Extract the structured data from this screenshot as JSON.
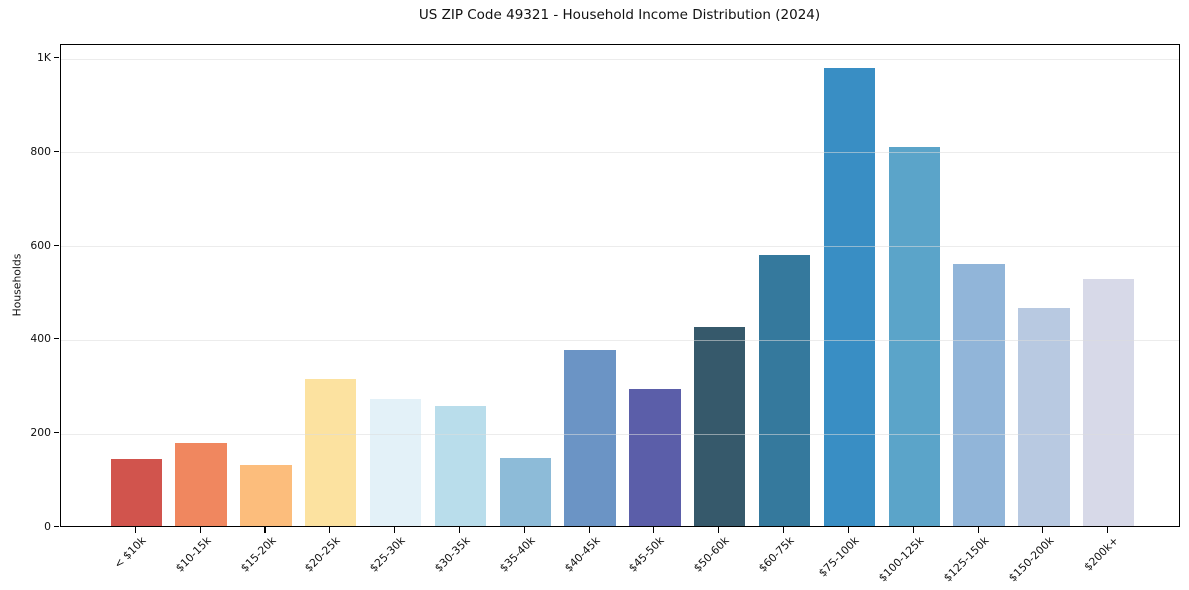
{
  "chart_data": {
    "type": "bar",
    "title": "US ZIP Code 49321 - Household Income Distribution (2024)",
    "xlabel": "",
    "ylabel": "Households",
    "categories": [
      "< $10k",
      "$10-15k",
      "$15-20k",
      "$20-25k",
      "$25-30k",
      "$30-35k",
      "$35-40k",
      "$40-45k",
      "$45-50k",
      "$50-60k",
      "$60-75k",
      "$75-100k",
      "$100-125k",
      "$125-150k",
      "$150-200k",
      "$200k+"
    ],
    "values": [
      142,
      177,
      129,
      312,
      270,
      255,
      144,
      374,
      291,
      423,
      577,
      976,
      808,
      558,
      464,
      526
    ],
    "bar_colors": [
      "#d1544d",
      "#f0875f",
      "#fcbd7c",
      "#fce2a0",
      "#e3f1f8",
      "#b9ddeb",
      "#8dbbd8",
      "#6b94c5",
      "#5b5ea9",
      "#36596b",
      "#35799d",
      "#398ec4",
      "#5ba4c9",
      "#91b5d9",
      "#b8c9e1",
      "#d7d9e8"
    ],
    "yticks": [
      {
        "value": 0,
        "label": "0"
      },
      {
        "value": 200,
        "label": "200"
      },
      {
        "value": 400,
        "label": "400"
      },
      {
        "value": 600,
        "label": "600"
      },
      {
        "value": 800,
        "label": "800"
      },
      {
        "value": 1000,
        "label": "1K"
      }
    ],
    "ylim": [
      0,
      1030
    ],
    "grid": "horizontal",
    "grid_on_top_of_bars": true,
    "legend": "none",
    "colors": {
      "frame": "#000000",
      "grid": "#dddddd",
      "text": "#1a1a1a",
      "background": "#ffffff"
    }
  }
}
